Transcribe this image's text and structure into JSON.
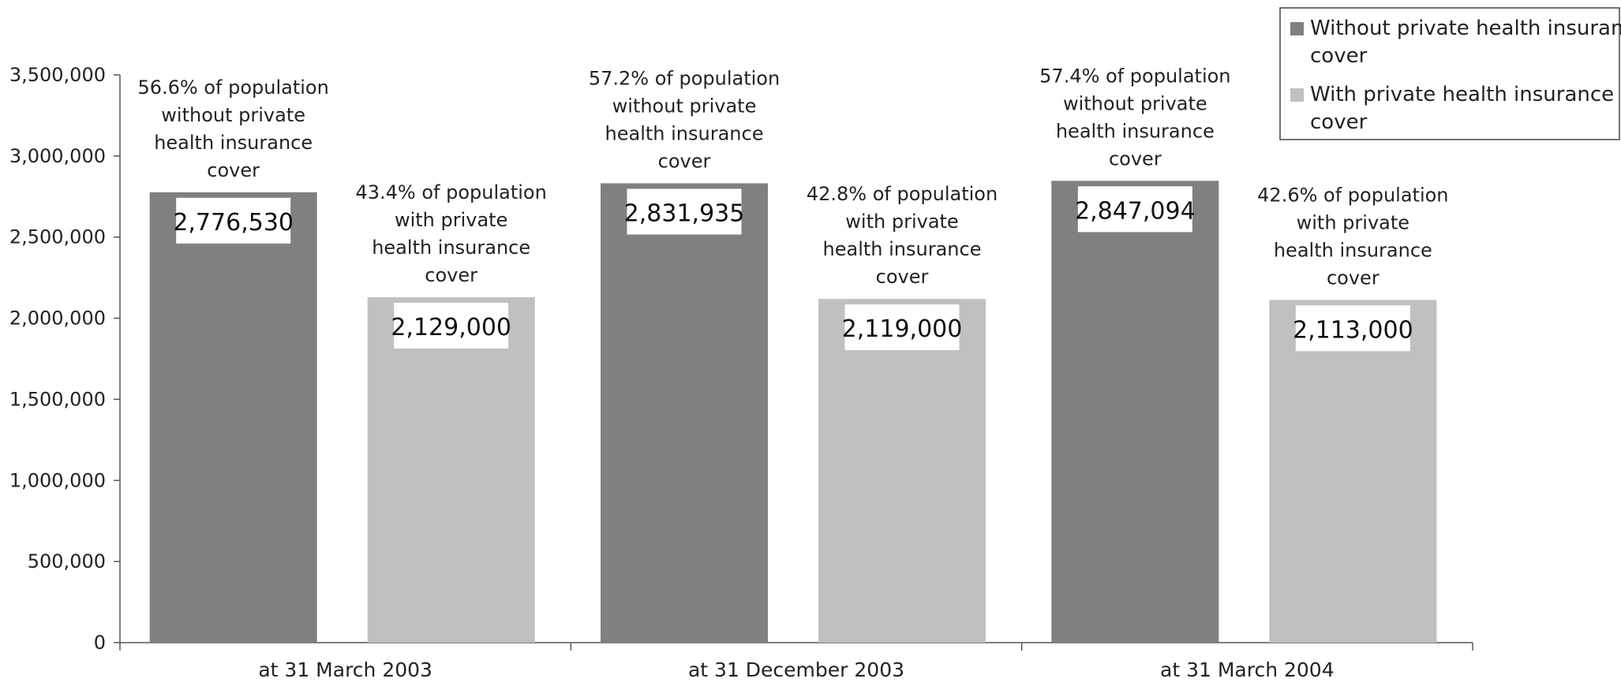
{
  "chart_data": {
    "type": "bar",
    "title": "",
    "xlabel": "",
    "ylabel": "",
    "categories": [
      "at 31 March 2003",
      "at 31 December 2003",
      "at 31 March 2004"
    ],
    "series": [
      {
        "name": "Without private health insurance cover",
        "color": "#808080",
        "values": [
          2776530,
          2831935,
          2847094
        ],
        "data_labels": [
          "2,776,530",
          "2,831,935",
          "2,847,094"
        ],
        "annotations": [
          [
            "56.6% of population",
            "without private",
            "health insurance",
            "cover"
          ],
          [
            "57.2% of population",
            "without private",
            "health insurance",
            "cover"
          ],
          [
            "57.4% of population",
            "without private",
            "health insurance",
            "cover"
          ]
        ]
      },
      {
        "name": "With private health insurance cover",
        "color": "#c0c0c0",
        "values": [
          2129000,
          2119000,
          2113000
        ],
        "data_labels": [
          "2,129,000",
          "2,119,000",
          "2,113,000"
        ],
        "annotations": [
          [
            "43.4% of population",
            "with private",
            "health insurance",
            "cover"
          ],
          [
            "42.8% of population",
            "with private",
            "health insurance",
            "cover"
          ],
          [
            "42.6% of population",
            "with private",
            "health insurance",
            "cover"
          ]
        ]
      }
    ],
    "ylim": [
      0,
      3500000
    ],
    "yticks": [
      0,
      500000,
      1000000,
      1500000,
      2000000,
      2500000,
      3000000,
      3500000
    ],
    "ytick_labels": [
      "0",
      "500,000",
      "1,000,000",
      "1,500,000",
      "2,000,000",
      "2,500,000",
      "3,000,000",
      "3,500,000"
    ],
    "grid": false,
    "legend": {
      "position": "top-right",
      "entries": [
        [
          "Without private health insurance",
          "cover"
        ],
        [
          "With private health insurance",
          "cover"
        ]
      ]
    }
  }
}
